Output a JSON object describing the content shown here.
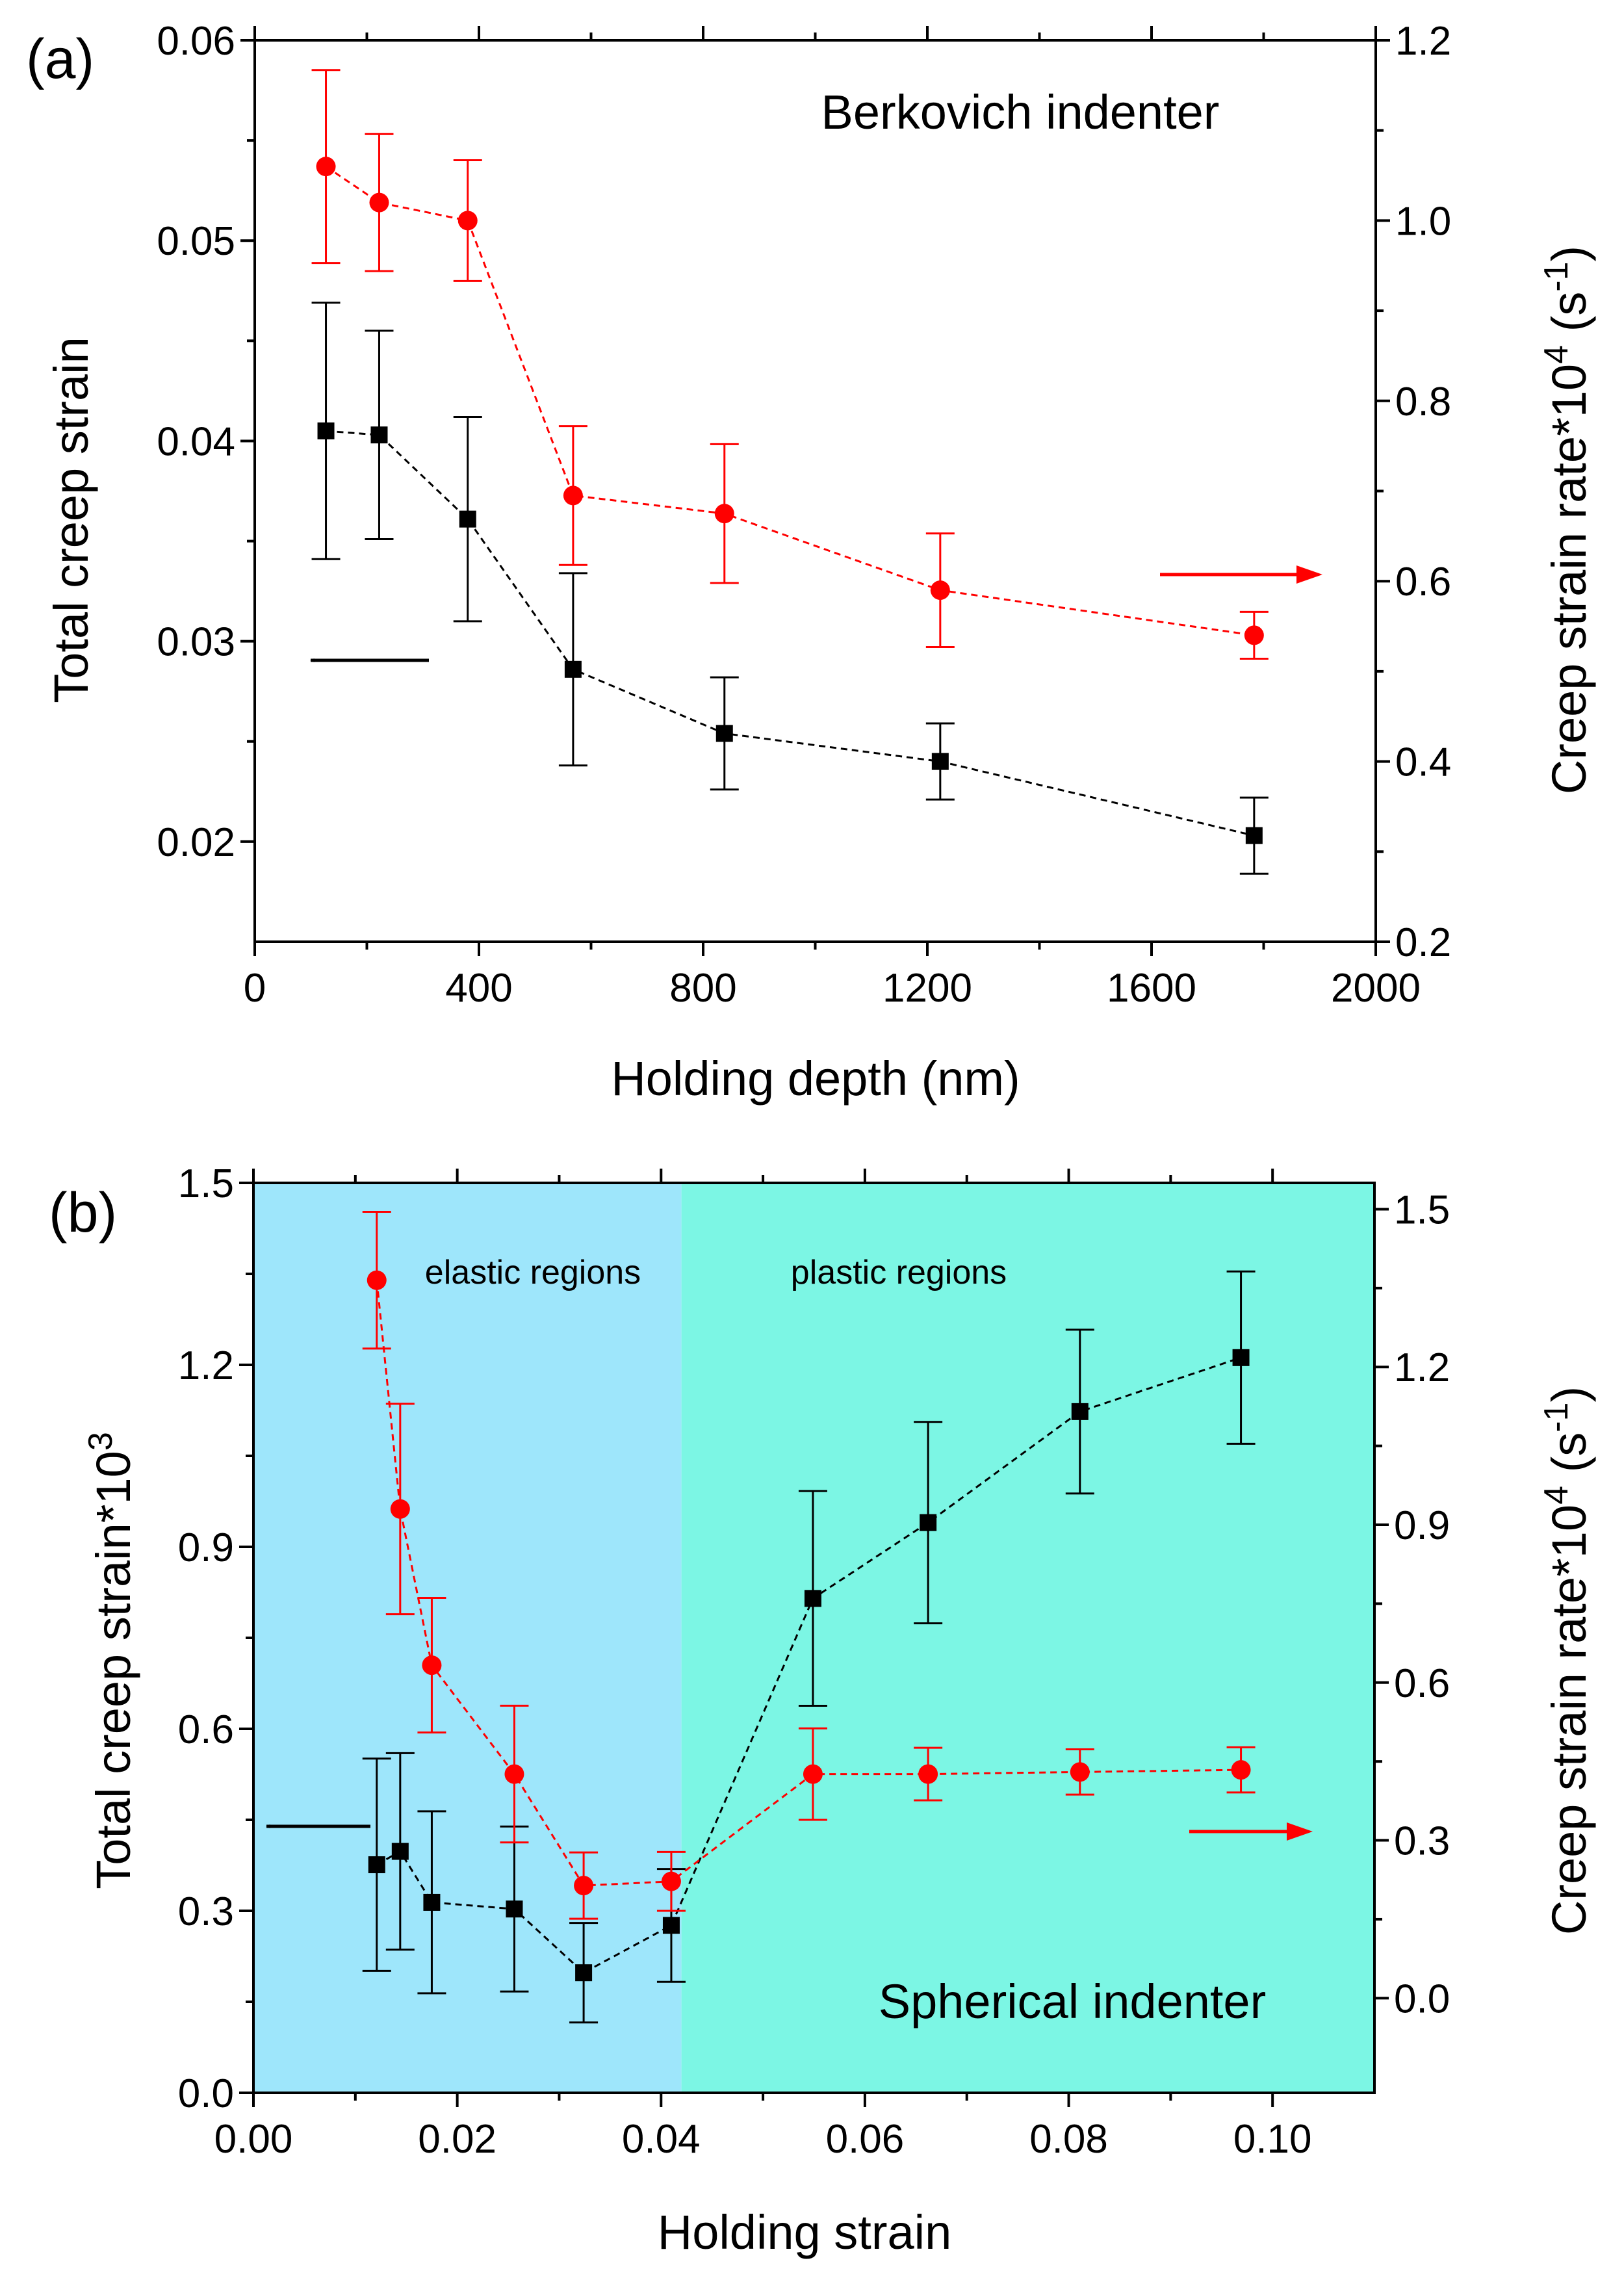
{
  "colors": {
    "black_series": "#000000",
    "red_series": "#ff0000",
    "elastic_region_fill": "#9ee6fb",
    "plastic_region_fill": "#7cf6e4"
  },
  "chart_data": [
    {
      "type": "line",
      "panel_label": "(a)",
      "annotation": "Berkovich indenter",
      "xlabel": "Holding depth (nm)",
      "ylabel_left": "Total creep strain",
      "ylabel_right_prefix": "Creep strain rate*10",
      "ylabel_right_exp": "4",
      "ylabel_right_unit": " (s",
      "ylabel_right_unit_exp": "-1",
      "ylabel_right_close": ")",
      "xlim": [
        0,
        2000
      ],
      "ylim_left": [
        0.015,
        0.06
      ],
      "ylim_right": [
        0.2,
        1.2
      ],
      "xticks": [
        0,
        400,
        800,
        1200,
        1600,
        2000
      ],
      "xtick_labels": [
        "0",
        "400",
        "800",
        "1200",
        "1600",
        "2000"
      ],
      "yticks_left": [
        0.02,
        0.03,
        0.04,
        0.05,
        0.06
      ],
      "ytick_labels_left": [
        "0.02",
        "0.03",
        "0.04",
        "0.05",
        "0.06"
      ],
      "yticks_right": [
        0.2,
        0.4,
        0.6,
        0.8,
        1.0,
        1.2
      ],
      "ytick_labels_right": [
        "0.2",
        "0.4",
        "0.6",
        "0.8",
        "1.0",
        "1.2"
      ],
      "series": [
        {
          "name": "Total creep strain",
          "axis": "left",
          "color": "#000000",
          "marker": "square",
          "arrow": "left",
          "x": [
            127,
            222,
            380,
            568,
            838,
            1223,
            1783
          ],
          "y": [
            0.0405,
            0.0403,
            0.0361,
            0.0286,
            0.0254,
            0.024,
            0.0203
          ],
          "err": [
            0.0064,
            0.0052,
            0.0051,
            0.0048,
            0.0028,
            0.0019,
            0.0019
          ]
        },
        {
          "name": "Creep strain rate*10^4 (s^-1)",
          "axis": "right",
          "color": "#ff0000",
          "marker": "circle",
          "arrow": "right",
          "x": [
            127,
            222,
            380,
            568,
            838,
            1223,
            1783
          ],
          "y": [
            1.06,
            1.02,
            1.0,
            0.695,
            0.675,
            0.59,
            0.54
          ],
          "err": [
            0.107,
            0.076,
            0.067,
            0.077,
            0.077,
            0.063,
            0.026
          ]
        }
      ]
    },
    {
      "type": "line",
      "panel_label": "(b)",
      "annotation": "Spherical indenter",
      "region_labels": [
        "elastic regions",
        "plastic regions"
      ],
      "region_boundary": 0.042,
      "xlabel": "Holding strain",
      "ylabel_left_prefix": "Total creep strain*10",
      "ylabel_left_exp": "3",
      "ylabel_right_prefix": "Creep strain rate*10",
      "ylabel_right_exp": "4",
      "ylabel_right_unit": " (s",
      "ylabel_right_unit_exp": "-1",
      "ylabel_right_close": ")",
      "xlim": [
        0,
        0.11
      ],
      "ylim_left": [
        0,
        1.5
      ],
      "ylim_right": [
        -0.18,
        1.55
      ],
      "xticks": [
        0,
        0.02,
        0.04,
        0.06,
        0.08,
        0.1
      ],
      "xtick_labels": [
        "0.00",
        "0.02",
        "0.04",
        "0.06",
        "0.08",
        "0.10"
      ],
      "yticks_left": [
        0,
        0.3,
        0.6,
        0.9,
        1.2,
        1.5
      ],
      "ytick_labels_left": [
        "0.0",
        "0.3",
        "0.6",
        "0.9",
        "1.2",
        "1.5"
      ],
      "yticks_right": [
        0,
        0.3,
        0.6,
        0.9,
        1.2,
        1.5
      ],
      "ytick_labels_right": [
        "0.0",
        "0.3",
        "0.6",
        "0.9",
        "1.2",
        "1.5"
      ],
      "series": [
        {
          "name": "Total creep strain*10^3",
          "axis": "left",
          "color": "#000000",
          "marker": "square",
          "arrow": "left",
          "x": [
            0.0121,
            0.0144,
            0.0175,
            0.0256,
            0.0324,
            0.041,
            0.0549,
            0.0662,
            0.0811,
            0.0969
          ],
          "y": [
            0.376,
            0.398,
            0.314,
            0.303,
            0.198,
            0.276,
            0.815,
            0.94,
            1.123,
            1.212
          ],
          "err": [
            0.175,
            0.162,
            0.15,
            0.136,
            0.082,
            0.093,
            0.177,
            0.166,
            0.135,
            0.142
          ]
        },
        {
          "name": "Creep strain rate*10^4 (s^-1)",
          "axis": "right",
          "color": "#ff0000",
          "marker": "circle",
          "arrow": "right",
          "x": [
            0.0121,
            0.0144,
            0.0175,
            0.0256,
            0.0324,
            0.041,
            0.0549,
            0.0662,
            0.0811,
            0.0969
          ],
          "y": [
            1.365,
            0.93,
            0.633,
            0.426,
            0.214,
            0.222,
            0.426,
            0.426,
            0.43,
            0.434
          ],
          "err": [
            0.13,
            0.2,
            0.128,
            0.13,
            0.063,
            0.056,
            0.087,
            0.05,
            0.043,
            0.043
          ]
        }
      ]
    }
  ]
}
